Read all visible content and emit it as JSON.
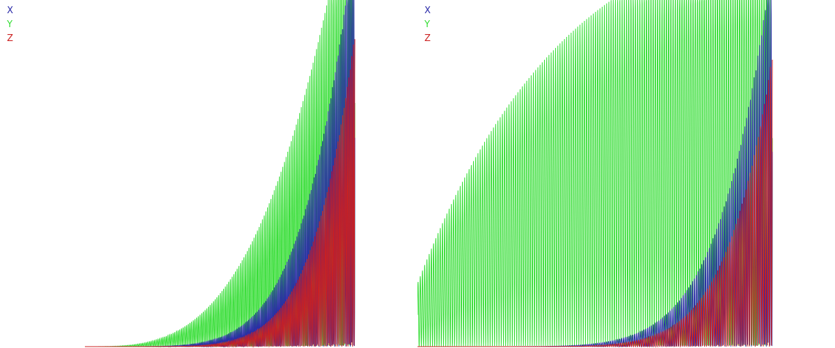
{
  "chart_data": [
    {
      "type": "line",
      "legend": [
        {
          "name": "X",
          "color": "#2a2aa8"
        },
        {
          "name": "Y",
          "color": "#33dd33"
        },
        {
          "name": "Z",
          "color": "#cc2020"
        }
      ],
      "legend_position": "top-left",
      "grid": false,
      "y_growth": {
        "X": 600,
        "Y": 700,
        "Z": 450
      },
      "shape": "exponential-rise",
      "series": [
        {
          "name": "X",
          "color": "#2a2aa8"
        },
        {
          "name": "Y",
          "color": "#33dd33"
        },
        {
          "name": "Z",
          "color": "#cc2020"
        }
      ]
    },
    {
      "type": "line",
      "legend": [
        {
          "name": "X",
          "color": "#2a2aa8"
        },
        {
          "name": "Y",
          "color": "#33dd33"
        },
        {
          "name": "Z",
          "color": "#cc2020"
        }
      ],
      "legend_position": "top-left",
      "grid": false,
      "y_growth": {
        "X": 560,
        "Y": 650,
        "Z": 420
      },
      "shape": "y-saturating-xz-exponential",
      "series": [
        {
          "name": "X",
          "color": "#2a2aa8"
        },
        {
          "name": "Y",
          "color": "#33dd33"
        },
        {
          "name": "Z",
          "color": "#cc2020"
        }
      ]
    }
  ]
}
